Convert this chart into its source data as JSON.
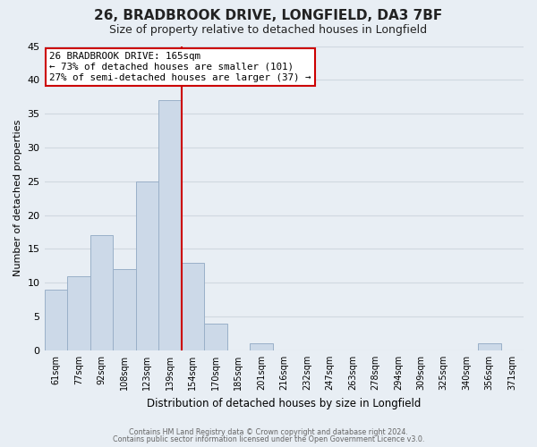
{
  "title": "26, BRADBROOK DRIVE, LONGFIELD, DA3 7BF",
  "subtitle": "Size of property relative to detached houses in Longfield",
  "xlabel": "Distribution of detached houses by size in Longfield",
  "ylabel": "Number of detached properties",
  "bar_labels": [
    "61sqm",
    "77sqm",
    "92sqm",
    "108sqm",
    "123sqm",
    "139sqm",
    "154sqm",
    "170sqm",
    "185sqm",
    "201sqm",
    "216sqm",
    "232sqm",
    "247sqm",
    "263sqm",
    "278sqm",
    "294sqm",
    "309sqm",
    "325sqm",
    "340sqm",
    "356sqm",
    "371sqm"
  ],
  "bar_values": [
    9,
    11,
    17,
    12,
    25,
    37,
    13,
    4,
    0,
    1,
    0,
    0,
    0,
    0,
    0,
    0,
    0,
    0,
    0,
    1,
    0
  ],
  "bar_color": "#ccd9e8",
  "bar_edge_color": "#9ab0c8",
  "vline_color": "#cc0000",
  "annotation_title": "26 BRADBROOK DRIVE: 165sqm",
  "annotation_line1": "← 73% of detached houses are smaller (101)",
  "annotation_line2": "27% of semi-detached houses are larger (37) →",
  "annotation_box_color": "#ffffff",
  "annotation_box_edge": "#cc0000",
  "ylim": [
    0,
    45
  ],
  "yticks": [
    0,
    5,
    10,
    15,
    20,
    25,
    30,
    35,
    40,
    45
  ],
  "footer1": "Contains HM Land Registry data © Crown copyright and database right 2024.",
  "footer2": "Contains public sector information licensed under the Open Government Licence v3.0.",
  "bg_color": "#e8eef4",
  "grid_color": "#d0d8e0",
  "title_fontsize": 11,
  "subtitle_fontsize": 9
}
